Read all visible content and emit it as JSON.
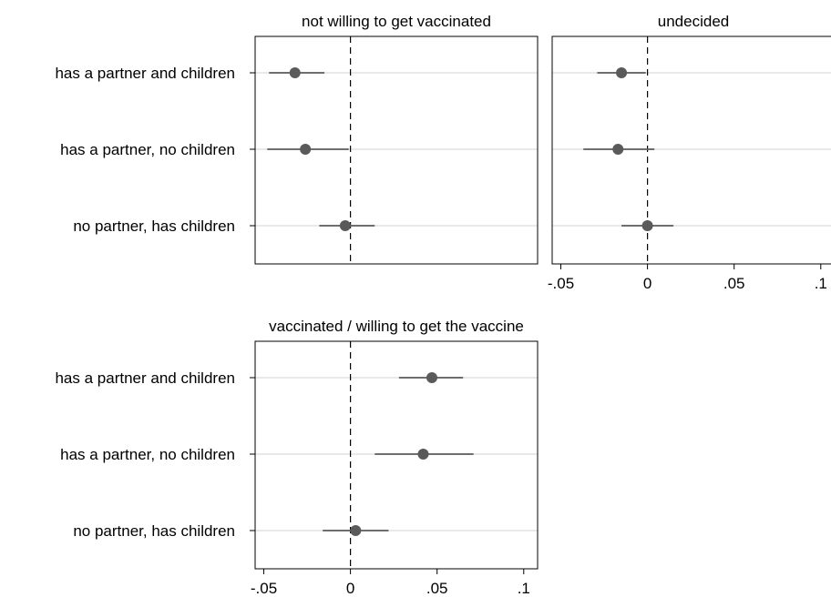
{
  "chart_data": [
    {
      "type": "scatter",
      "title": "not willing to get vaccinated",
      "categories": [
        "has a partner and children",
        "has a partner, no children",
        "no partner, has children"
      ],
      "estimates": [
        -0.032,
        -0.026,
        -0.003
      ],
      "ci_low": [
        -0.047,
        -0.048,
        -0.018
      ],
      "ci_high": [
        -0.015,
        -0.001,
        0.014
      ],
      "xlim": [
        -0.055,
        0.108
      ],
      "xticks": [],
      "reference_line": 0,
      "grid": true
    },
    {
      "type": "scatter",
      "title": "undecided",
      "categories": [
        "has a partner and children",
        "has a partner, no children",
        "no partner, has children"
      ],
      "estimates": [
        -0.015,
        -0.017,
        0.0
      ],
      "ci_low": [
        -0.029,
        -0.037,
        -0.015
      ],
      "ci_high": [
        -0.001,
        0.004,
        0.015
      ],
      "xlim": [
        -0.055,
        0.108
      ],
      "xticks": [
        "-.05",
        "0",
        ".05",
        ".1"
      ],
      "xtick_values": [
        -0.05,
        0,
        0.05,
        0.1
      ],
      "reference_line": 0,
      "grid": true
    },
    {
      "type": "scatter",
      "title": "vaccinated / willing to get the vaccine",
      "categories": [
        "has a partner and children",
        "has a partner, no children",
        "no partner, has children"
      ],
      "estimates": [
        0.047,
        0.042,
        0.003
      ],
      "ci_low": [
        0.028,
        0.014,
        -0.016
      ],
      "ci_high": [
        0.065,
        0.071,
        0.022
      ],
      "xlim": [
        -0.055,
        0.108
      ],
      "xticks": [
        "-.05",
        "0",
        ".05",
        ".1"
      ],
      "xtick_values": [
        -0.05,
        0,
        0.05,
        0.1
      ],
      "reference_line": 0,
      "grid": true
    }
  ]
}
